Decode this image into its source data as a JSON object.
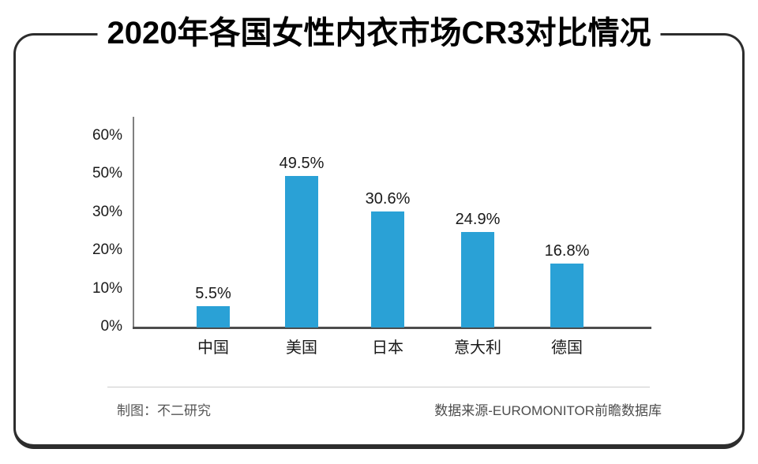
{
  "title": "2020年各国女性内衣市场CR3对比情况",
  "chart_data": {
    "type": "bar",
    "title": "2020年各国女性内衣市场CR3对比情况",
    "categories": [
      "中国",
      "美国",
      "日本",
      "意大利",
      "德国"
    ],
    "values": [
      5.5,
      49.5,
      30.6,
      24.9,
      16.8
    ],
    "value_labels": [
      "5.5%",
      "49.5%",
      "30.6%",
      "24.9%",
      "16.8%"
    ],
    "y_tick_labels_top_to_bottom": [
      "60%",
      "50%",
      "30%",
      "20%",
      "10%",
      "0%"
    ],
    "xlabel": "",
    "ylabel": "",
    "grid": false,
    "legend": false,
    "bar_color": "#2aa1d6",
    "axis_color": "#808080",
    "baseline_color": "#4d4d4d"
  },
  "footer": {
    "left": "制图：不二研究",
    "right": "数据来源-EUROMONITOR前瞻数据库"
  }
}
